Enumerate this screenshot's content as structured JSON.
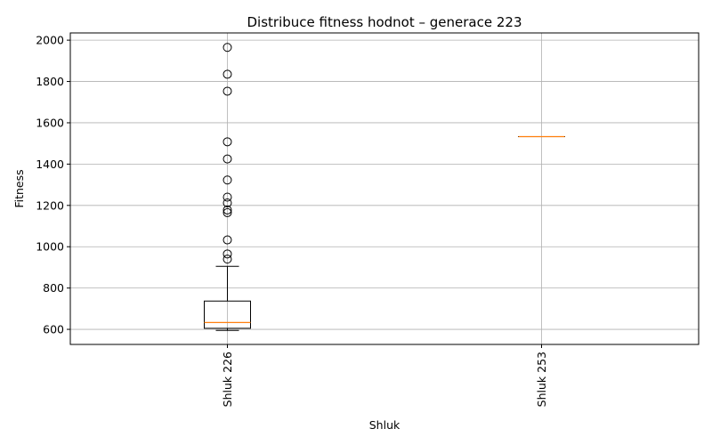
{
  "chart_data": {
    "type": "box",
    "title": "Distribuce fitness hodnot – generace 223",
    "xlabel": "Shluk",
    "ylabel": "Fitness",
    "ylim": [
      527,
      2035
    ],
    "yticks": [
      600,
      800,
      1000,
      1200,
      1400,
      1600,
      1800,
      2000
    ],
    "grid": true,
    "colors": {
      "box": "#000000",
      "median": "#ff7f0e",
      "grid": "#b0b0b0"
    },
    "groups": [
      {
        "label": "Shluk 226",
        "whisker_low": 595,
        "q1": 605,
        "median": 633,
        "q3": 737,
        "whisker_high": 905,
        "outliers": [
          940,
          965,
          1033,
          1165,
          1178,
          1212,
          1240,
          1323,
          1425,
          1508,
          1753,
          1835,
          1965
        ]
      },
      {
        "label": "Shluk 253",
        "whisker_low": 1533,
        "q1": 1533,
        "median": 1533,
        "q3": 1533,
        "whisker_high": 1533,
        "outliers": []
      }
    ]
  }
}
